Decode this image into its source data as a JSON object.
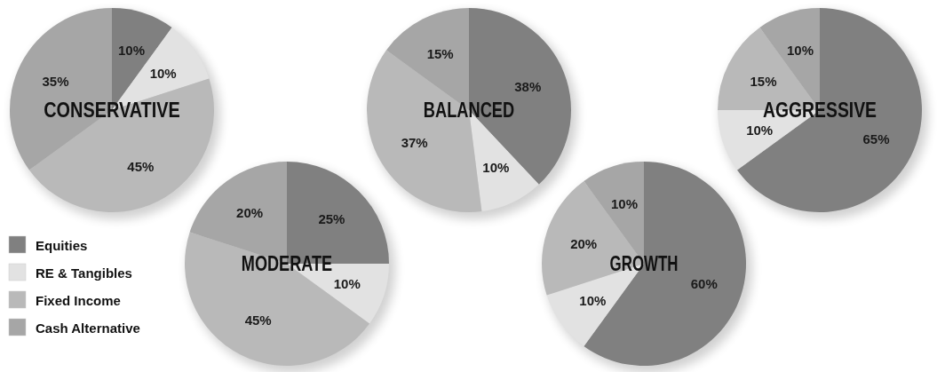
{
  "chart_data": [
    {
      "type": "pie",
      "title": "CONSERVATIVE",
      "categories": [
        "Equities",
        "RE & Tangibles",
        "Fixed Income",
        "Cash Alternative"
      ],
      "values": [
        10,
        10,
        45,
        35
      ],
      "value_labels": [
        "10%",
        "10%",
        "45%",
        "35%"
      ],
      "colors": [
        "#808080",
        "#e2e2e2",
        "#b9b9b9",
        "#a6a6a6"
      ],
      "legend": "bottom left"
    },
    {
      "type": "pie",
      "title": "MODERATE",
      "categories": [
        null,
        null,
        null,
        null
      ],
      "values": [
        25,
        10,
        45,
        20
      ],
      "value_labels": [
        "25%",
        "10%",
        "45%",
        "20%"
      ],
      "colors": [
        "#808080",
        "#e2e2e2",
        "#b9b9b9",
        "#a6a6a6"
      ]
    },
    {
      "type": "pie",
      "title": "BALANCED",
      "categories": [
        null,
        null,
        null,
        null
      ],
      "values": [
        38,
        10,
        37,
        15
      ],
      "value_labels": [
        "38%",
        "10%",
        "37%",
        "15%"
      ],
      "colors": [
        "#808080",
        "#e2e2e2",
        "#b9b9b9",
        "#a6a6a6"
      ]
    },
    {
      "type": "pie",
      "title": "GROWTH",
      "categories": [
        null,
        null,
        null,
        null
      ],
      "values": [
        60,
        10,
        20,
        10
      ],
      "value_labels": [
        "60%",
        "10%",
        "20%",
        "10%"
      ],
      "colors": [
        "#808080",
        "#e2e2e2",
        "#b9b9b9",
        "#a6a6a6"
      ]
    },
    {
      "type": "pie",
      "title": "AGGRESSIVE",
      "categories": [
        null,
        null,
        null,
        null
      ],
      "values": [
        65,
        10,
        15,
        10
      ],
      "value_labels": [
        "65%",
        "10%",
        "15%",
        "10%"
      ],
      "colors": [
        "#808080",
        "#e2e2e2",
        "#b9b9b9",
        "#a6a6a6"
      ]
    }
  ]
}
